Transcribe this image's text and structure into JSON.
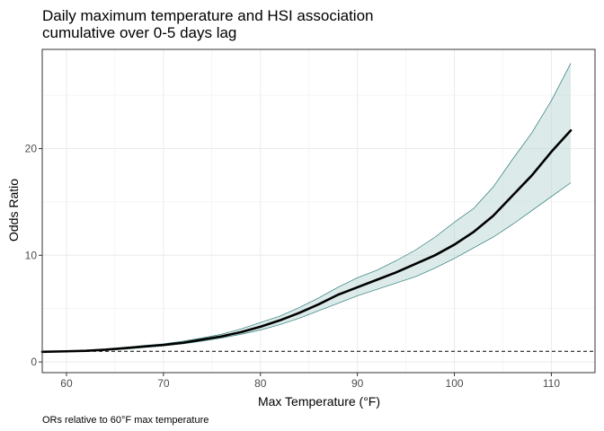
{
  "chart_data": {
    "type": "line",
    "title_line1": "Daily maximum temperature and HSI association",
    "title_line2": "cumulative over 0-5 days lag",
    "xlabel": "Max Temperature (°F)",
    "ylabel": "Odds Ratio",
    "caption": "ORs relative to 60°F max temperature",
    "xlim": [
      57.5,
      114.5
    ],
    "ylim": [
      -1.0,
      29.3
    ],
    "x_ticks": [
      60,
      70,
      80,
      90,
      100,
      110
    ],
    "y_ticks": [
      0,
      10,
      20
    ],
    "reference_line": 1,
    "grid": true,
    "colors": {
      "line": "#000000",
      "ribbon_fill": "#b9d8d5",
      "ribbon_edge": "#2a7a77",
      "grid": "#ebebeb",
      "panel_border": "#333333"
    },
    "series": [
      {
        "x": [
          57.5,
          60,
          62,
          64,
          66,
          68,
          70,
          72,
          74,
          76,
          78,
          80,
          82,
          84,
          86,
          88,
          90,
          92,
          94,
          96,
          98,
          100,
          102,
          104,
          106,
          108,
          110,
          112
        ],
        "y": [
          0.95,
          1.0,
          1.05,
          1.15,
          1.3,
          1.45,
          1.6,
          1.8,
          2.1,
          2.4,
          2.8,
          3.3,
          3.9,
          4.6,
          5.4,
          6.3,
          7.0,
          7.7,
          8.4,
          9.2,
          10.0,
          11.0,
          12.2,
          13.7,
          15.6,
          17.5,
          19.7,
          21.7
        ],
        "lower": [
          0.9,
          1.0,
          1.0,
          1.1,
          1.2,
          1.35,
          1.5,
          1.7,
          1.95,
          2.25,
          2.6,
          3.0,
          3.5,
          4.1,
          4.8,
          5.5,
          6.2,
          6.8,
          7.4,
          8.0,
          8.8,
          9.7,
          10.7,
          11.7,
          12.9,
          14.2,
          15.5,
          16.8
        ],
        "upper": [
          1.0,
          1.0,
          1.1,
          1.2,
          1.35,
          1.55,
          1.7,
          1.95,
          2.25,
          2.6,
          3.1,
          3.7,
          4.3,
          5.1,
          6.0,
          7.0,
          7.9,
          8.6,
          9.5,
          10.5,
          11.7,
          13.1,
          14.4,
          16.4,
          19.0,
          21.5,
          24.5,
          28.0
        ]
      }
    ]
  }
}
